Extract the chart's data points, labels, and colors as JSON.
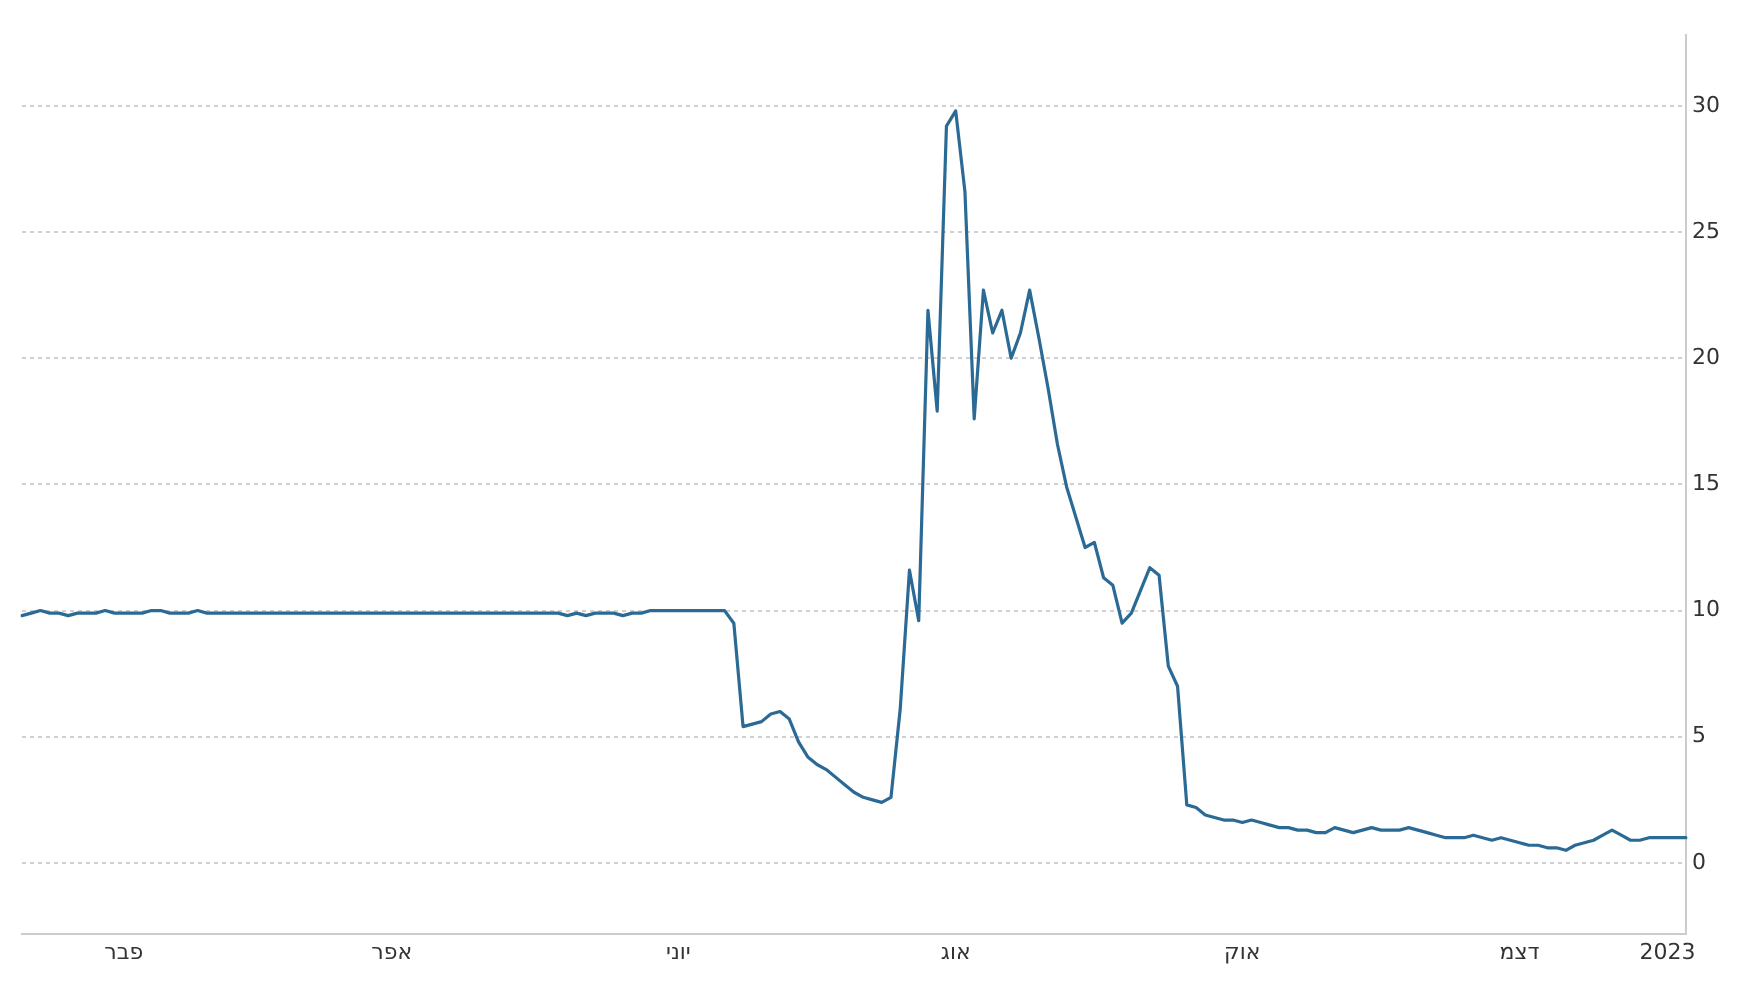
{
  "chart_data": {
    "type": "line",
    "categories": [
      null,
      null,
      null,
      null,
      null,
      null,
      null,
      null,
      null,
      null,
      null,
      "פבר",
      null,
      null,
      null,
      null,
      null,
      null,
      null,
      null,
      null,
      null,
      null,
      null,
      null,
      null,
      null,
      null,
      null,
      null,
      null,
      null,
      null,
      null,
      null,
      null,
      null,
      null,
      null,
      null,
      "אפר",
      null,
      null,
      null,
      null,
      null,
      null,
      null,
      null,
      null,
      null,
      null,
      null,
      null,
      null,
      null,
      null,
      null,
      null,
      null,
      null,
      null,
      null,
      null,
      null,
      null,
      null,
      null,
      null,
      null,
      null,
      "יוני",
      null,
      null,
      null,
      null,
      null,
      null,
      null,
      null,
      null,
      null,
      null,
      null,
      null,
      null,
      null,
      null,
      null,
      null,
      null,
      null,
      null,
      null,
      null,
      null,
      null,
      null,
      null,
      null,
      null,
      "אוג",
      null,
      null,
      null,
      null,
      null,
      null,
      null,
      null,
      null,
      null,
      null,
      null,
      null,
      null,
      null,
      null,
      null,
      null,
      null,
      null,
      null,
      null,
      null,
      null,
      null,
      null,
      null,
      null,
      null,
      null,
      "אוק",
      null,
      null,
      null,
      null,
      null,
      null,
      null,
      null,
      null,
      null,
      null,
      null,
      null,
      null,
      null,
      null,
      null,
      null,
      null,
      null,
      null,
      null,
      null,
      null,
      null,
      null,
      null,
      null,
      null,
      "דצמ",
      null,
      null,
      null,
      null,
      null,
      null,
      null,
      null,
      null,
      null,
      null,
      null,
      null,
      null,
      null,
      "2023",
      null,
      null
    ],
    "series": [
      {
        "color": "#2b6a94",
        "values": [
          9.8,
          9.9,
          10,
          9.9,
          9.9,
          9.8,
          9.9,
          9.9,
          9.9,
          10,
          9.9,
          9.9,
          9.9,
          9.9,
          10,
          10,
          9.9,
          9.9,
          9.9,
          10,
          9.9,
          9.9,
          9.9,
          9.9,
          9.9,
          9.9,
          9.9,
          9.9,
          9.9,
          9.9,
          9.9,
          9.9,
          9.9,
          9.9,
          9.9,
          9.9,
          9.9,
          9.9,
          9.9,
          9.9,
          9.9,
          9.9,
          9.9,
          9.9,
          9.9,
          9.9,
          9.9,
          9.9,
          9.9,
          9.9,
          9.9,
          9.9,
          9.9,
          9.9,
          9.9,
          9.9,
          9.9,
          9.9,
          9.9,
          9.8,
          9.9,
          9.8,
          9.9,
          9.9,
          9.9,
          9.8,
          9.9,
          9.9,
          10,
          10,
          10,
          10,
          10,
          10,
          10,
          10,
          10,
          9.5,
          5.4,
          5.5,
          5.6,
          5.9,
          6.0,
          5.7,
          4.8,
          4.2,
          3.9,
          3.7,
          3.4,
          3.1,
          2.8,
          2.6,
          2.5,
          2.4,
          2.6,
          6.1,
          11.6,
          9.6,
          21.9,
          17.9,
          29.2,
          29.8,
          26.6,
          17.6,
          22.7,
          21.0,
          21.9,
          20.0,
          21.0,
          22.7,
          20.8,
          18.8,
          16.6,
          14.9,
          13.7,
          12.5,
          12.7,
          11.3,
          11.0,
          9.5,
          9.9,
          10.8,
          11.7,
          11.4,
          7.8,
          7.0,
          2.3,
          2.2,
          1.9,
          1.8,
          1.7,
          1.7,
          1.6,
          1.7,
          1.6,
          1.5,
          1.4,
          1.4,
          1.3,
          1.3,
          1.2,
          1.2,
          1.4,
          1.3,
          1.2,
          1.3,
          1.4,
          1.3,
          1.3,
          1.3,
          1.4,
          1.3,
          1.2,
          1.1,
          1.0,
          1.0,
          1.0,
          1.1,
          1.0,
          0.9,
          1.0,
          0.9,
          0.8,
          0.7,
          0.7,
          0.6,
          0.6,
          0.5,
          0.7,
          0.8,
          0.9,
          1.1,
          1.3,
          1.1,
          0.9,
          0.9,
          1.0,
          1.0,
          1.0,
          1.0,
          1.0
        ]
      }
    ],
    "ylim": [
      -2.8,
      32.8
    ],
    "yticks": [
      0,
      5,
      10,
      15,
      20,
      25,
      30
    ],
    "grid": "y",
    "marker": "none",
    "line_style": "solid"
  }
}
